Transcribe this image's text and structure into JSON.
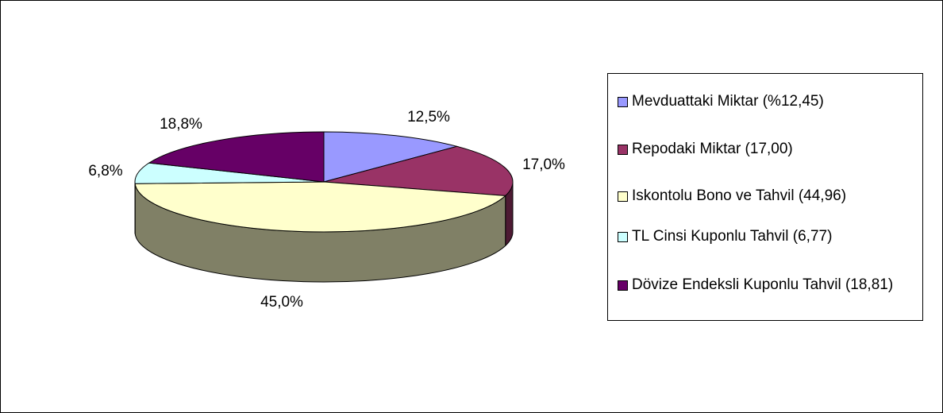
{
  "chart_data": {
    "type": "pie",
    "categories": [
      "Mevduattaki Miktar (%12,45)",
      "Repodaki Miktar (17,00)",
      "Iskontolu Bono ve Tahvil (44,96)",
      "TL Cinsi Kuponlu Tahvil (6,77)",
      "Dövize Endeksli Kuponlu Tahvil (18,81)"
    ],
    "values": [
      12.45,
      17.0,
      44.96,
      6.77,
      18.81
    ],
    "value_labels": [
      "12,5%",
      "17,0%",
      "45,0%",
      "6,8%",
      "18,8%"
    ],
    "colors": [
      "#9999ff",
      "#993366",
      "#ffffcc",
      "#ccffff",
      "#660066"
    ]
  }
}
